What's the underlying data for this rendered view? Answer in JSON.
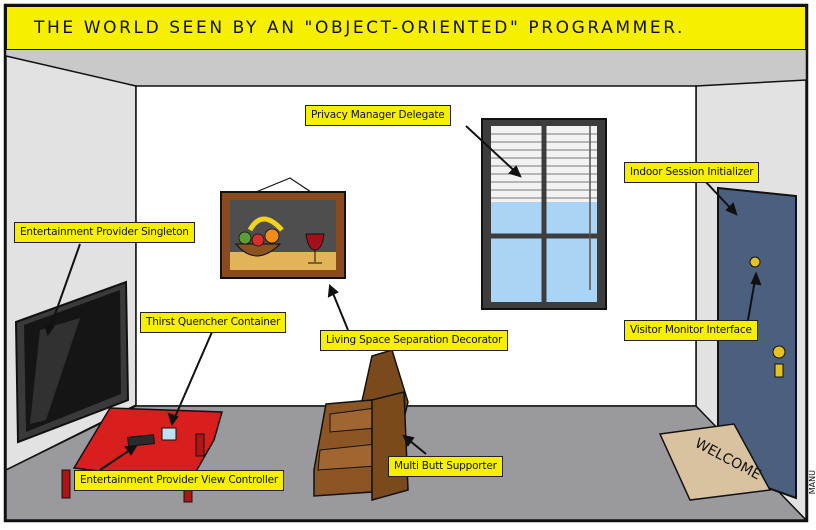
{
  "title": "THE WORLD SEEN BY AN \"OBJECT-ORIENTED\" PROGRAMMER.",
  "labels": {
    "privacy": "Privacy Manager Delegate",
    "indoor": "Indoor Session Initializer",
    "entertainment_singleton": "Entertainment Provider Singleton",
    "thirst": "Thirst Quencher Container",
    "living": "Living Space Separation Decorator",
    "visitor": "Visitor Monitor Interface",
    "view_controller": "Entertainment Provider View Controller",
    "multi": "Multi Butt Supporter"
  },
  "doormat_text": "WELCOME",
  "signature": "MANU",
  "colors": {
    "banner": "#f6f000",
    "floor": "#9a9a9e",
    "back_wall": "#ffffff",
    "side_wall": "#e2e2e2",
    "ceiling": "#c9c9c9",
    "door": "#4b5f7e",
    "table": "#d91e1e",
    "sofa": "#7a4a1c",
    "sky": "#a9d4f5"
  }
}
